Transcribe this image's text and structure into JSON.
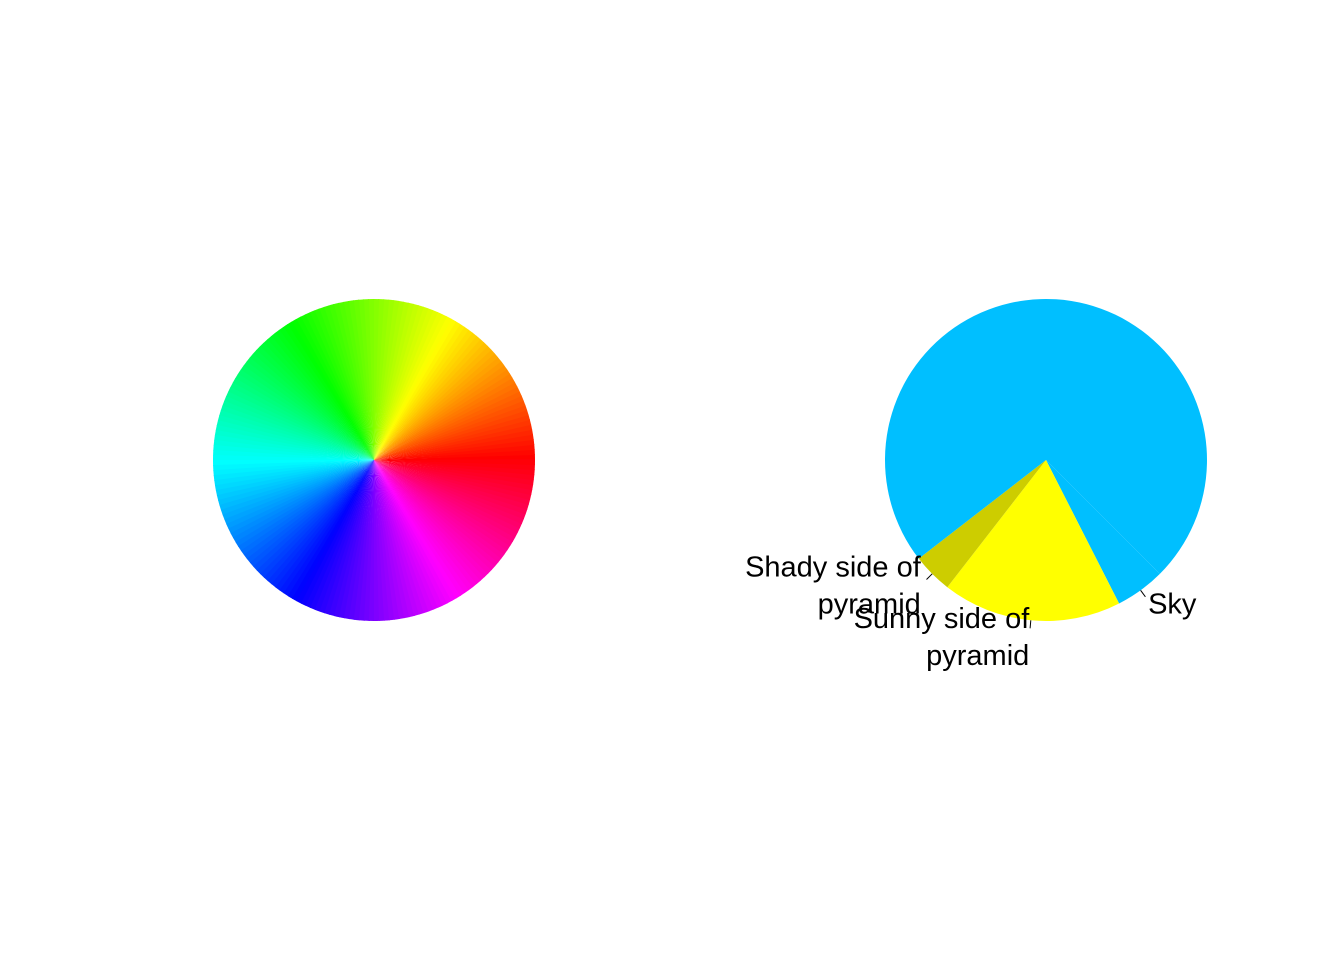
{
  "chart_data": [
    {
      "type": "pie",
      "title": "",
      "label": "rainbow color wheel",
      "slice_count": 200,
      "values": "200 equal slices",
      "palette": "rainbow",
      "start_color": "#FF0000",
      "labels_shown": false
    },
    {
      "type": "pie",
      "title": "",
      "label": "pyramid",
      "start_angle_deg": 315,
      "direction": "clockwise",
      "categories": [
        "Sky",
        "Sunny side of pyramid",
        "Shady side of pyramid",
        "Sky"
      ],
      "values": [
        0.05,
        0.18,
        0.04,
        0.73
      ],
      "colors": [
        "#00BFFF",
        "#FFFF00",
        "#CDCD00",
        "#00BFFF"
      ],
      "slice_labels": [
        {
          "name": "Sky",
          "lines": [
            "Sky"
          ]
        },
        {
          "name": "Sunny side of pyramid",
          "lines": [
            "Sunny side of",
            "pyramid"
          ]
        },
        {
          "name": "Shady side of pyramid",
          "lines": [
            "Shady side of",
            "pyramid"
          ]
        }
      ]
    }
  ]
}
